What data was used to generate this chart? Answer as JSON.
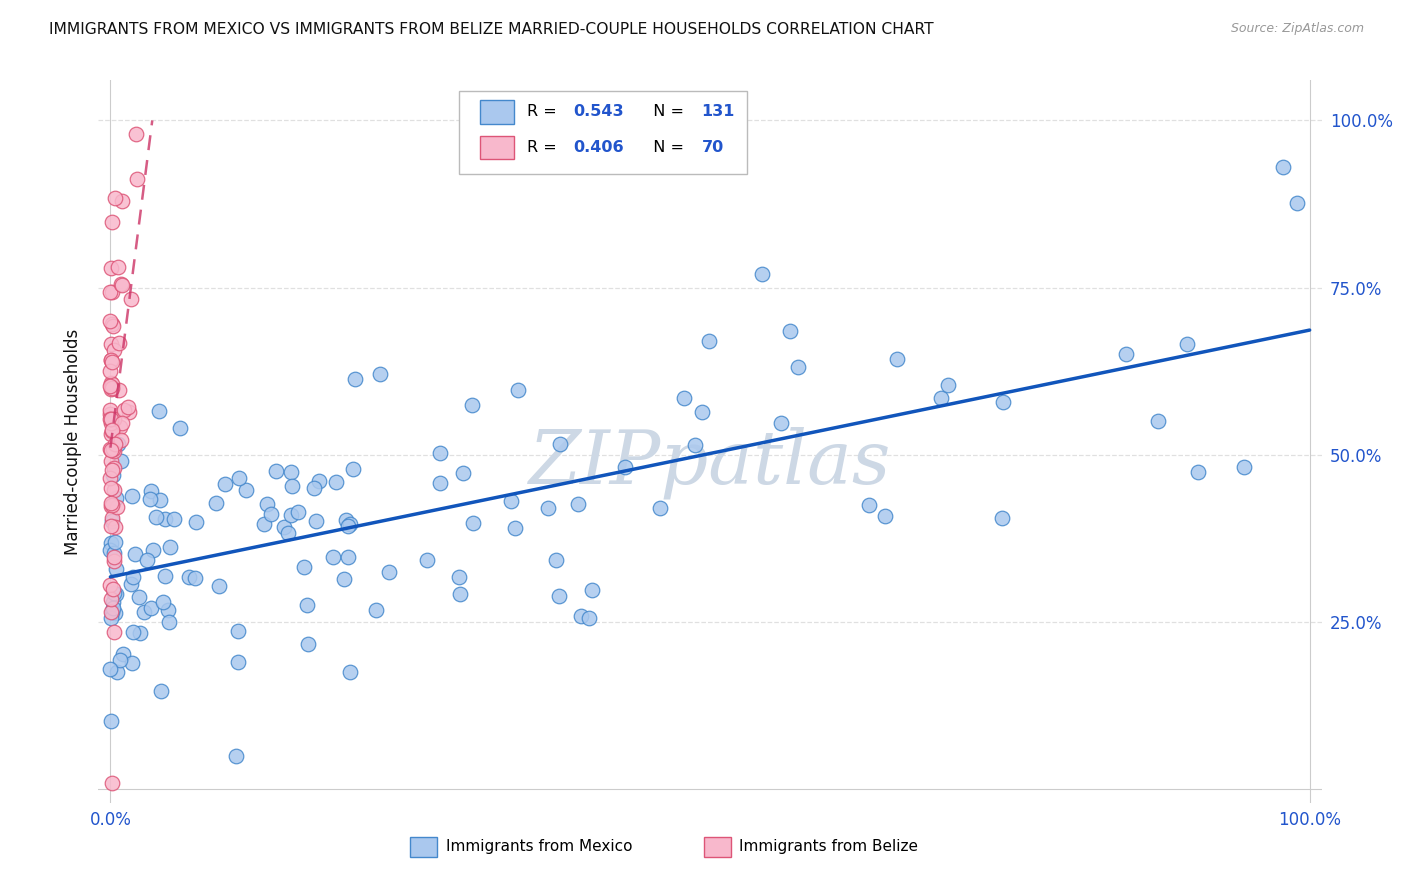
{
  "title": "IMMIGRANTS FROM MEXICO VS IMMIGRANTS FROM BELIZE MARRIED-COUPLE HOUSEHOLDS CORRELATION CHART",
  "source": "Source: ZipAtlas.com",
  "ylabel": "Married-couple Households",
  "legend_mexico_r": "0.543",
  "legend_mexico_n": "131",
  "legend_belize_r": "0.406",
  "legend_belize_n": "70",
  "legend_label_mexico": "Immigrants from Mexico",
  "legend_label_belize": "Immigrants from Belize",
  "mexico_fill_color": "#aac8ee",
  "mexico_edge_color": "#4488cc",
  "belize_fill_color": "#f8b8cc",
  "belize_edge_color": "#dd5577",
  "mexico_line_color": "#1155bb",
  "belize_line_color": "#cc3366",
  "watermark_color": "#cdd8e5",
  "background_color": "#ffffff",
  "r_n_color": "#2255cc",
  "title_color": "#111111",
  "source_color": "#999999",
  "axis_tick_color": "#2255cc",
  "ylabel_color": "#111111",
  "y_ticks": [
    0.0,
    0.25,
    0.5,
    0.75,
    1.0
  ],
  "y_tick_labels_right": [
    "",
    "25.0%",
    "50.0%",
    "75.0%",
    "100.0%"
  ],
  "grid_color": "#dddddd",
  "xlim": [
    0.0,
    1.0
  ],
  "ylim": [
    0.0,
    1.0
  ]
}
